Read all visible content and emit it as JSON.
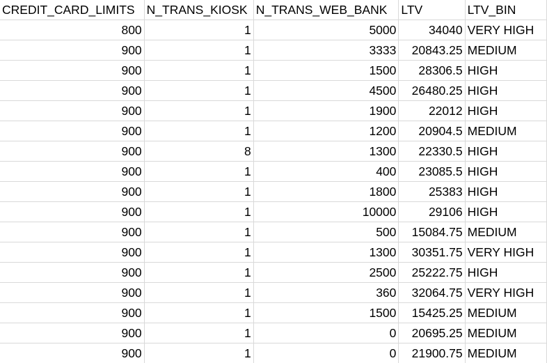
{
  "headers": [
    "CREDIT_CARD_LIMITS",
    "N_TRANS_KIOSK",
    "N_TRANS_WEB_BANK",
    "LTV",
    "LTV_BIN"
  ],
  "rows": [
    [
      "800",
      "1",
      "5000",
      "34040",
      "VERY HIGH"
    ],
    [
      "900",
      "1",
      "3333",
      "20843.25",
      "MEDIUM"
    ],
    [
      "900",
      "1",
      "1500",
      "28306.5",
      "HIGH"
    ],
    [
      "900",
      "1",
      "4500",
      "26480.25",
      "HIGH"
    ],
    [
      "900",
      "1",
      "1900",
      "22012",
      "HIGH"
    ],
    [
      "900",
      "1",
      "1200",
      "20904.5",
      "MEDIUM"
    ],
    [
      "900",
      "8",
      "1300",
      "22330.5",
      "HIGH"
    ],
    [
      "900",
      "1",
      "400",
      "23085.5",
      "HIGH"
    ],
    [
      "900",
      "1",
      "1800",
      "25383",
      "HIGH"
    ],
    [
      "900",
      "1",
      "10000",
      "29106",
      "HIGH"
    ],
    [
      "900",
      "1",
      "500",
      "15084.75",
      "MEDIUM"
    ],
    [
      "900",
      "1",
      "1300",
      "30351.75",
      "VERY HIGH"
    ],
    [
      "900",
      "1",
      "2500",
      "25222.75",
      "HIGH"
    ],
    [
      "900",
      "1",
      "360",
      "32064.75",
      "VERY HIGH"
    ],
    [
      "900",
      "1",
      "1500",
      "15425.25",
      "MEDIUM"
    ],
    [
      "900",
      "1",
      "0",
      "20695.25",
      "MEDIUM"
    ],
    [
      "900",
      "1",
      "0",
      "21900.75",
      "MEDIUM"
    ]
  ],
  "colors": {
    "gridline": "#d9d9d9",
    "text": "#000000",
    "background": "#ffffff"
  }
}
